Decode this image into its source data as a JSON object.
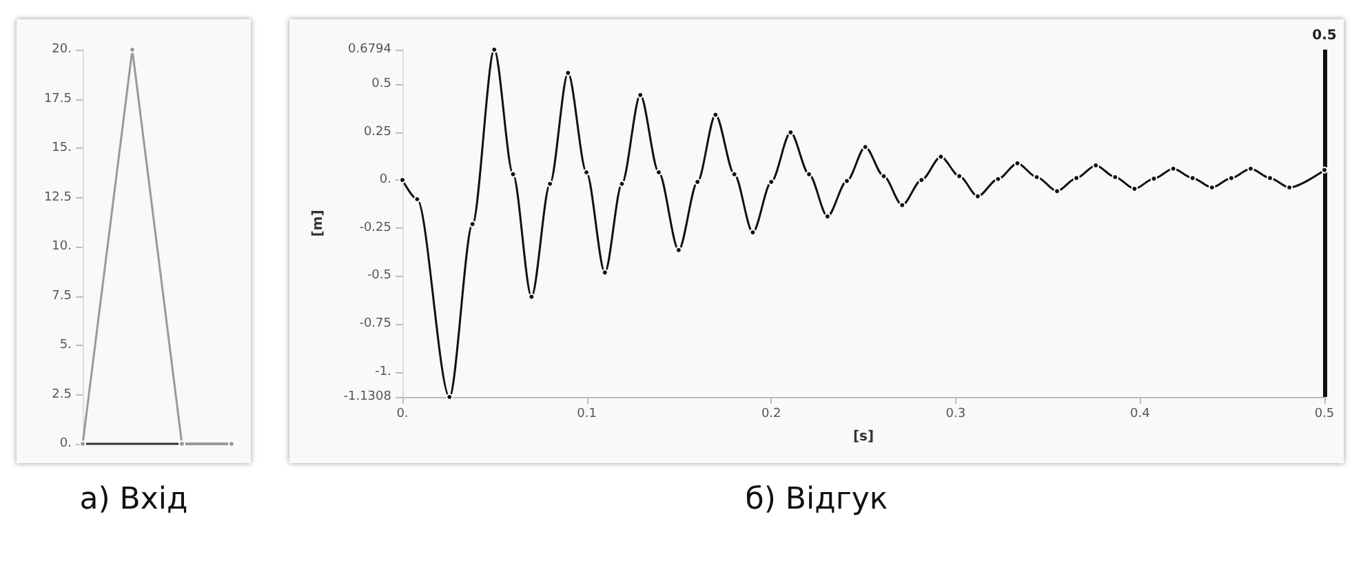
{
  "chart_data": [
    {
      "type": "line",
      "title": "а)  Вхід",
      "categories": [
        null,
        null,
        null,
        null
      ],
      "tick_labels": "y",
      "ylim": [
        0,
        20
      ],
      "yticks": [
        {
          "value": 0,
          "label": "0."
        },
        2.5,
        {
          "value": 5,
          "label": "5."
        },
        7.5,
        {
          "value": 10,
          "label": "10."
        },
        12.5,
        {
          "value": 15,
          "label": "15."
        },
        17.5,
        {
          "value": 20,
          "label": "20."
        }
      ],
      "series": [
        {
          "color": "#999999",
          "values": [
            0,
            20,
            0,
            0
          ]
        }
      ],
      "marker": "circle",
      "line_style": "solid",
      "grid": false
    },
    {
      "type": "line",
      "title": "б)  Відгук",
      "xlabel": "[s]",
      "ylabel": "[m]",
      "xlim": [
        0,
        0.5
      ],
      "xticks": [
        {
          "value": 0,
          "label": "0."
        },
        0.1,
        0.2,
        0.3,
        0.4,
        0.5
      ],
      "ylim": [
        -1.1308,
        0.6794
      ],
      "yticks": [
        -1.1308,
        {
          "value": -1,
          "label": "-1."
        },
        -0.75,
        -0.5,
        -0.25,
        {
          "value": 0,
          "label": "0."
        },
        0.25,
        0.5,
        0.6794
      ],
      "x": [
        0,
        0.008,
        0.0255,
        0.038,
        0.0498,
        0.06,
        0.07,
        0.08,
        0.0898,
        0.0998,
        0.1098,
        0.119,
        0.129,
        0.139,
        0.1498,
        0.16,
        0.1698,
        0.18,
        0.19,
        0.2,
        0.2105,
        0.2205,
        0.2305,
        0.241,
        0.251,
        0.261,
        0.271,
        0.2815,
        0.292,
        0.302,
        0.312,
        0.323,
        0.3335,
        0.344,
        0.355,
        0.3655,
        0.376,
        0.3865,
        0.397,
        0.4075,
        0.418,
        0.4285,
        0.439,
        0.4495,
        0.46,
        0.4705,
        0.481,
        0.5
      ],
      "series": [
        {
          "color": "#111111",
          "values": [
            0,
            -0.1,
            -1.1308,
            -0.23,
            0.6794,
            0.03,
            -0.609,
            -0.02,
            0.558,
            0.04,
            -0.482,
            -0.02,
            0.443,
            0.04,
            -0.365,
            -0.01,
            0.34,
            0.03,
            -0.273,
            -0.01,
            0.248,
            0.03,
            -0.19,
            -0.005,
            0.172,
            0.02,
            -0.131,
            0,
            0.121,
            0.02,
            -0.085,
            0.005,
            0.087,
            0.015,
            -0.058,
            0.01,
            0.076,
            0.015,
            -0.046,
            0.007,
            0.059,
            0.01,
            -0.039,
            0.01,
            0.059,
            0.01,
            -0.039,
            0.052
          ]
        }
      ],
      "ref_lines": [
        {
          "axis": "x",
          "value": 0.5,
          "label": "0.5",
          "color": "#111111"
        }
      ],
      "marker": "circle",
      "line_style": "solid",
      "grid": false
    }
  ]
}
